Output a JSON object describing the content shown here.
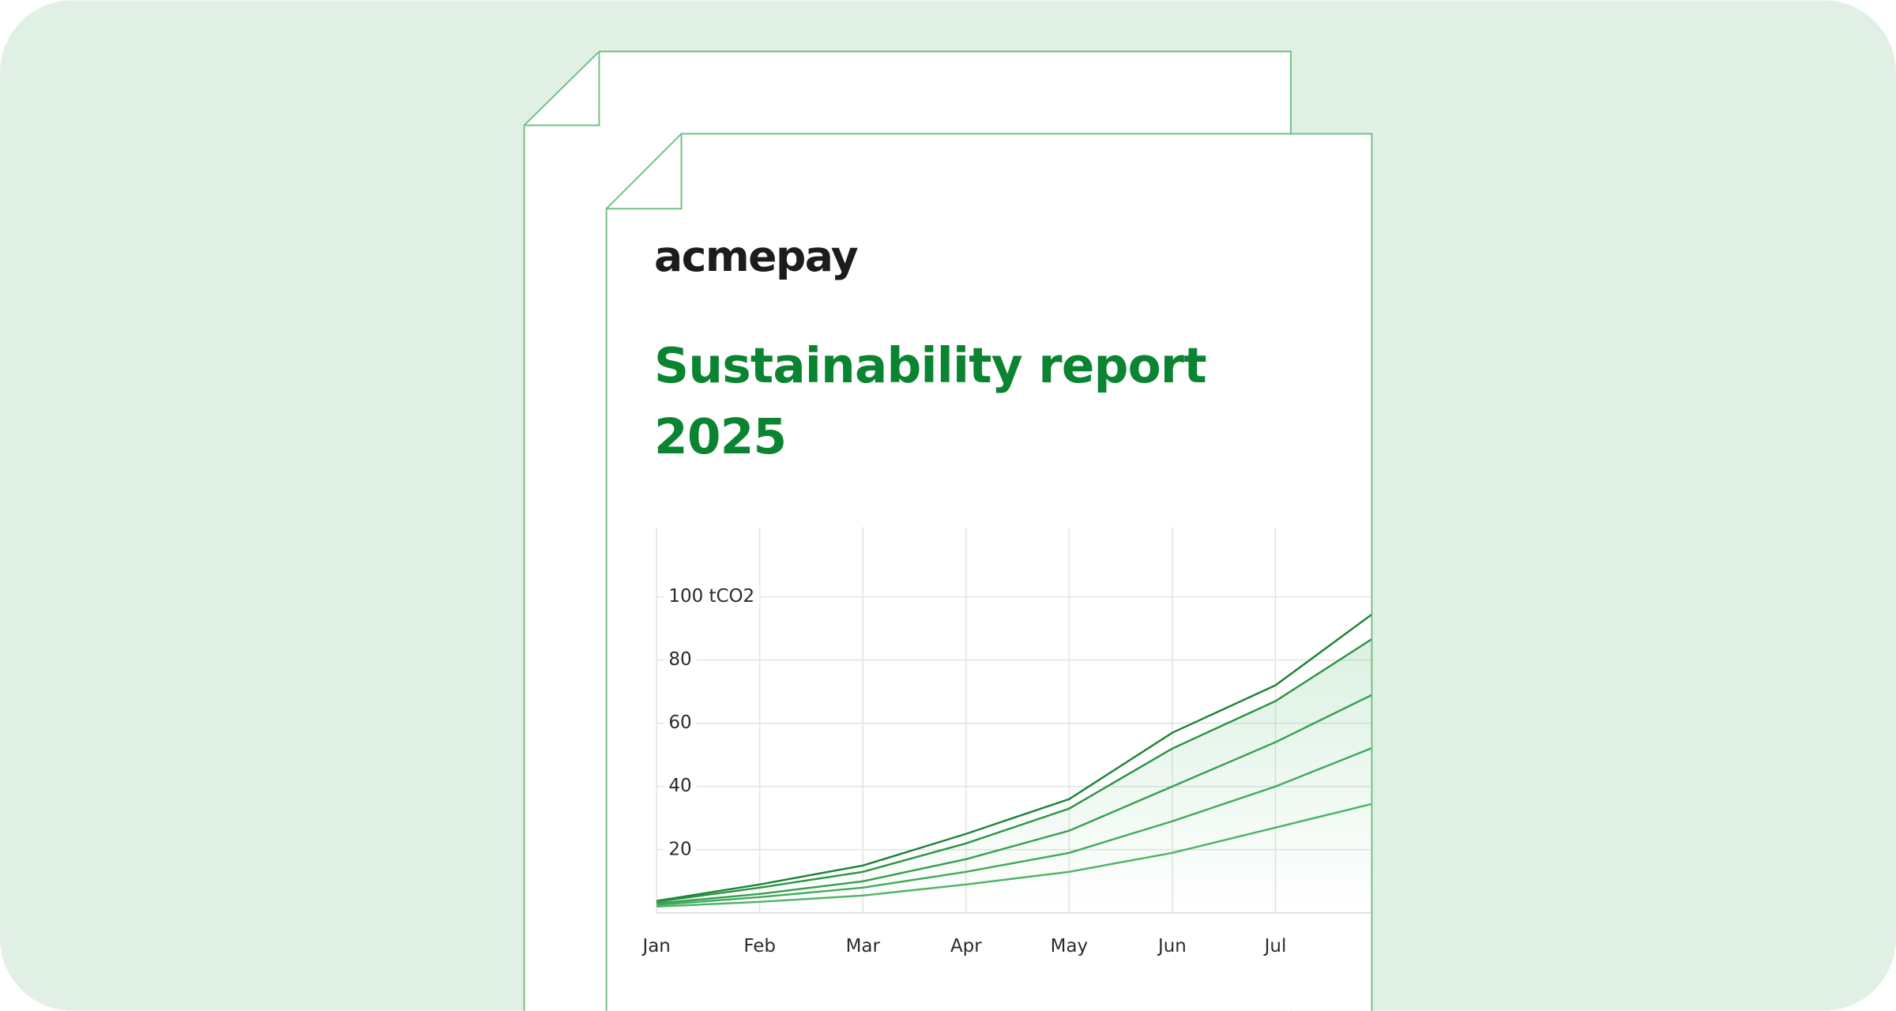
{
  "document": {
    "logo": "acmepay",
    "title": [
      "Sustainability report",
      "2025"
    ]
  },
  "chart_data": {
    "type": "line",
    "categories": [
      "Jan",
      "Feb",
      "Mar",
      "Apr",
      "May",
      "Jun",
      "Jul",
      null
    ],
    "series": [
      {
        "color": "#1b8537",
        "values": [
          3.8,
          9,
          15,
          25,
          36,
          57,
          72,
          96
        ]
      },
      {
        "color": "#2a9444",
        "values": [
          3.5,
          8,
          13,
          22,
          33,
          52,
          67,
          88
        ]
      },
      {
        "color": "#36a051",
        "values": [
          3,
          6,
          10,
          17,
          26,
          40,
          54,
          70
        ]
      },
      {
        "color": "#42aa5c",
        "values": [
          2.5,
          5,
          8,
          13,
          19,
          29,
          40,
          53
        ]
      },
      {
        "color": "#4db466",
        "values": [
          2,
          3.5,
          5.5,
          9,
          13,
          19,
          27,
          35
        ]
      }
    ],
    "ylim": [
      0,
      122
    ],
    "yticks": [
      {
        "value": 100,
        "label": "100 tCO2"
      },
      80,
      60,
      40,
      20
    ],
    "grid": true
  }
}
